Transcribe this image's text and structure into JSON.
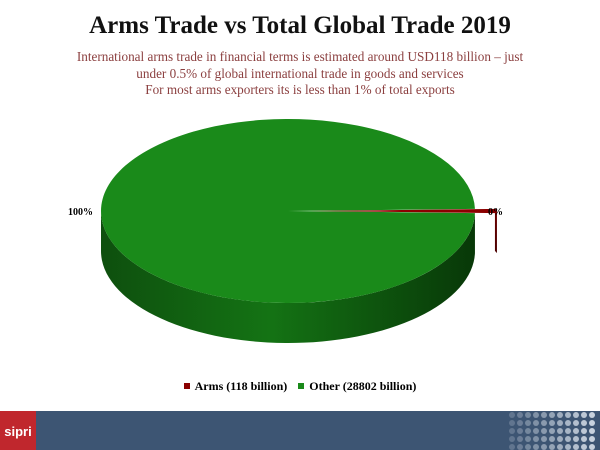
{
  "header": {
    "title": "Arms Trade vs Total Global Trade 2019",
    "subtitle_lines": [
      "International arms trade in financial terms is estimated around USD118 billion – just",
      "under 0.5% of global international trade in goods and services",
      "For most arms exporters its is less than 1% of total exports"
    ]
  },
  "chart_data": {
    "type": "pie",
    "categories": [
      "Arms",
      "Other"
    ],
    "values": [
      118,
      28802
    ],
    "unit": "billion",
    "data_labels": [
      "0%",
      "100%"
    ],
    "colors": [
      "#8b0000",
      "#1a8a1a"
    ],
    "legend_entries": [
      "Arms (118 billion)",
      "Other (28802 billion)"
    ],
    "legend_position": "bottom",
    "style": "3d-exploded"
  },
  "footer": {
    "logo_text": "sipri",
    "colors": {
      "bar": "#3d5573",
      "logo": "#c0272d"
    }
  }
}
